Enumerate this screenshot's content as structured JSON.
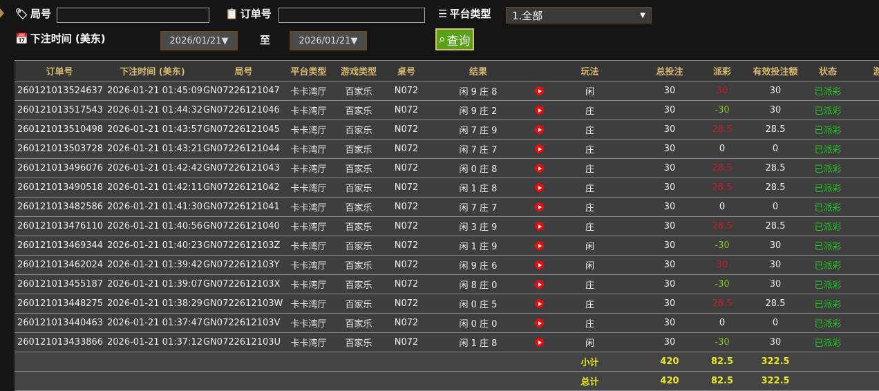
{
  "filters": {
    "round_label": "局号",
    "round_value": "",
    "order_label": "订单号",
    "order_value": "",
    "platform_label": "平台类型",
    "platform_value": "1.全部",
    "time_label": "下注时间 (美东)",
    "date_from": "2026/01/21▼",
    "to_label": "至",
    "date_to": "2026/01/21▼",
    "query_label": "查询"
  },
  "columns": [
    "订单号",
    "下注时间 (美东)",
    "局号",
    "平台类型",
    "游戏类型",
    "桌号",
    "结果",
    "",
    "玩法",
    "总投注",
    "派彩",
    "有效投注额",
    "状态",
    "游"
  ],
  "rows": [
    [
      "260121013524637",
      "2026-01-21 01:45:09",
      "GN07226121047",
      "卡卡湾厅",
      "百家乐",
      "N072",
      "闲 9 庄 8",
      "闲",
      "30",
      "30",
      "30",
      "已派彩",
      "pos"
    ],
    [
      "260121013517543",
      "2026-01-21 01:44:32",
      "GN07226121046",
      "卡卡湾厅",
      "百家乐",
      "N072",
      "闲 9 庄 2",
      "庄",
      "30",
      "-30",
      "30",
      "已派彩",
      "neg"
    ],
    [
      "260121013510498",
      "2026-01-21 01:43:57",
      "GN07226121045",
      "卡卡湾厅",
      "百家乐",
      "N072",
      "闲 7 庄 9",
      "庄",
      "30",
      "28.5",
      "28.5",
      "已派彩",
      "pos"
    ],
    [
      "260121013503728",
      "2026-01-21 01:43:21",
      "GN07226121044",
      "卡卡湾厅",
      "百家乐",
      "N072",
      "闲 7 庄 7",
      "庄",
      "30",
      "0",
      "0",
      "已派彩",
      "zero"
    ],
    [
      "260121013496076",
      "2026-01-21 01:42:42",
      "GN07226121043",
      "卡卡湾厅",
      "百家乐",
      "N072",
      "闲 0 庄 8",
      "庄",
      "30",
      "28.5",
      "28.5",
      "已派彩",
      "pos"
    ],
    [
      "260121013490518",
      "2026-01-21 01:42:11",
      "GN07226121042",
      "卡卡湾厅",
      "百家乐",
      "N072",
      "闲 1 庄 8",
      "庄",
      "30",
      "28.5",
      "28.5",
      "已派彩",
      "pos"
    ],
    [
      "260121013482586",
      "2026-01-21 01:41:30",
      "GN07226121041",
      "卡卡湾厅",
      "百家乐",
      "N072",
      "闲 7 庄 7",
      "庄",
      "30",
      "0",
      "0",
      "已派彩",
      "zero"
    ],
    [
      "260121013476110",
      "2026-01-21 01:40:56",
      "GN07226121040",
      "卡卡湾厅",
      "百家乐",
      "N072",
      "闲 3 庄 9",
      "庄",
      "30",
      "28.5",
      "28.5",
      "已派彩",
      "pos"
    ],
    [
      "260121013469344",
      "2026-01-21 01:40:23",
      "GN0722612103Z",
      "卡卡湾厅",
      "百家乐",
      "N072",
      "闲 1 庄 9",
      "闲",
      "30",
      "-30",
      "30",
      "已派彩",
      "neg"
    ],
    [
      "260121013462024",
      "2026-01-21 01:39:42",
      "GN0722612103Y",
      "卡卡湾厅",
      "百家乐",
      "N072",
      "闲 9 庄 6",
      "闲",
      "30",
      "30",
      "30",
      "已派彩",
      "pos"
    ],
    [
      "260121013455187",
      "2026-01-21 01:39:07",
      "GN0722612103X",
      "卡卡湾厅",
      "百家乐",
      "N072",
      "闲 8 庄 0",
      "庄",
      "30",
      "-30",
      "30",
      "已派彩",
      "neg"
    ],
    [
      "260121013448275",
      "2026-01-21 01:38:29",
      "GN0722612103W",
      "卡卡湾厅",
      "百家乐",
      "N072",
      "闲 0 庄 5",
      "庄",
      "30",
      "28.5",
      "28.5",
      "已派彩",
      "pos"
    ],
    [
      "260121013440463",
      "2026-01-21 01:37:47",
      "GN0722612103V",
      "卡卡湾厅",
      "百家乐",
      "N072",
      "闲 0 庄 0",
      "庄",
      "30",
      "0",
      "0",
      "已派彩",
      "zero"
    ],
    [
      "260121013433866",
      "2026-01-21 01:37:12",
      "GN0722612103U",
      "卡卡湾厅",
      "百家乐",
      "N072",
      "闲 1 庄 8",
      "闲",
      "30",
      "-30",
      "30",
      "已派彩",
      "neg"
    ]
  ],
  "subtotal": {
    "label": "小计",
    "total_bet": "420",
    "payout": "82.5",
    "valid_bet": "322.5"
  },
  "total": {
    "label": "总计",
    "total_bet": "420",
    "payout": "82.5",
    "valid_bet": "322.5"
  },
  "colors": {
    "accent": "#5aa018",
    "header_text": "#d6b870",
    "payout_win": "#c8182c",
    "payout_loss": "#7ec820",
    "status": "#1fc41f",
    "summary": "#e8e820"
  }
}
